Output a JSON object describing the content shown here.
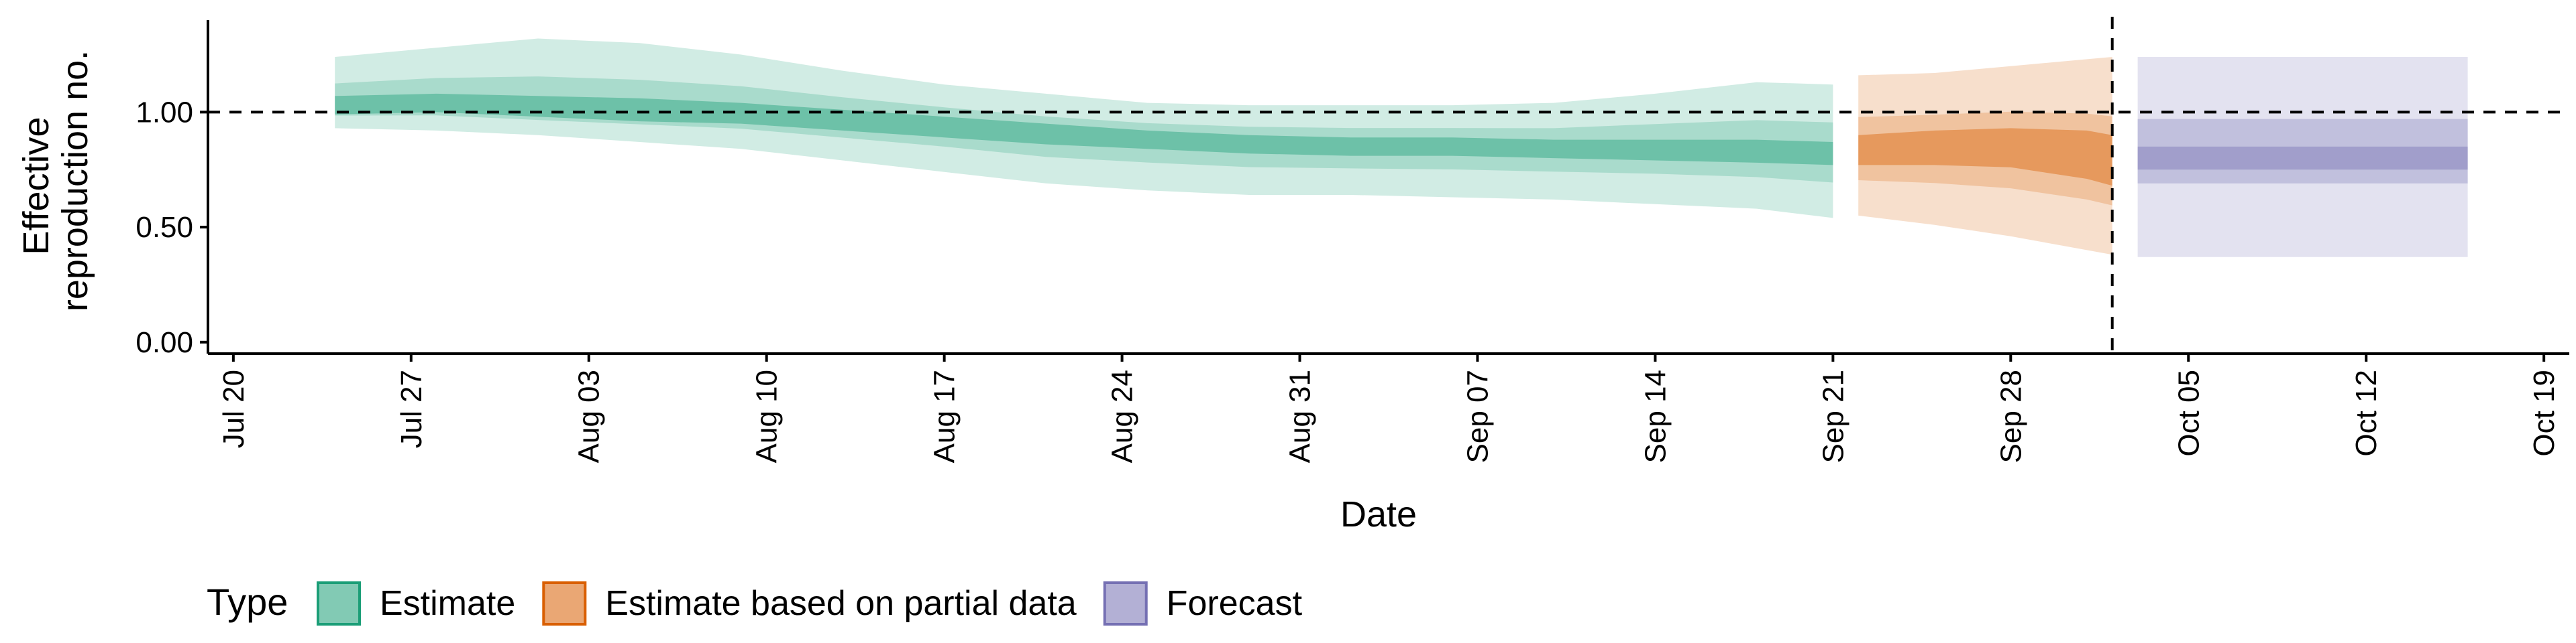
{
  "chart_data": {
    "type": "area",
    "xlabel": "Date",
    "ylabel_lines": [
      "Effective",
      "reproduction no."
    ],
    "x_range": [
      "2020-07-19",
      "2020-10-20"
    ],
    "y_range": [
      -0.05,
      1.4
    ],
    "x_ticks": [
      {
        "date": "2020-07-20",
        "label": "Jul 20"
      },
      {
        "date": "2020-07-27",
        "label": "Jul 27"
      },
      {
        "date": "2020-08-03",
        "label": "Aug 03"
      },
      {
        "date": "2020-08-10",
        "label": "Aug 10"
      },
      {
        "date": "2020-08-17",
        "label": "Aug 17"
      },
      {
        "date": "2020-08-24",
        "label": "Aug 24"
      },
      {
        "date": "2020-08-31",
        "label": "Aug 31"
      },
      {
        "date": "2020-09-07",
        "label": "Sep 07"
      },
      {
        "date": "2020-09-14",
        "label": "Sep 14"
      },
      {
        "date": "2020-09-21",
        "label": "Sep 21"
      },
      {
        "date": "2020-09-28",
        "label": "Sep 28"
      },
      {
        "date": "2020-10-05",
        "label": "Oct 05"
      },
      {
        "date": "2020-10-12",
        "label": "Oct 12"
      },
      {
        "date": "2020-10-19",
        "label": "Oct 19"
      }
    ],
    "y_ticks": [
      {
        "value": 0,
        "label": "0.00"
      },
      {
        "value": 0.5,
        "label": "0.50"
      },
      {
        "value": 1,
        "label": "1.00"
      }
    ],
    "reference_line_y": 1.0,
    "vertical_line_date": "2020-10-02",
    "legend": {
      "title": "Type",
      "position": "bottom"
    },
    "series": [
      {
        "name": "Estimate",
        "color": "#1B9E77",
        "points": [
          {
            "x": "2020-07-24",
            "median": 1.03,
            "q25": 0.99,
            "q75": 1.07,
            "lo": 0.93,
            "hi": 1.24
          },
          {
            "x": "2020-07-28",
            "median": 1.04,
            "q25": 1.0,
            "q75": 1.08,
            "lo": 0.92,
            "hi": 1.28
          },
          {
            "x": "2020-08-01",
            "median": 1.02,
            "q25": 0.98,
            "q75": 1.07,
            "lo": 0.9,
            "hi": 1.32
          },
          {
            "x": "2020-08-05",
            "median": 1.01,
            "q25": 0.96,
            "q75": 1.06,
            "lo": 0.87,
            "hi": 1.3
          },
          {
            "x": "2020-08-09",
            "median": 1.0,
            "q25": 0.95,
            "q75": 1.04,
            "lo": 0.84,
            "hi": 1.25
          },
          {
            "x": "2020-08-13",
            "median": 0.97,
            "q25": 0.92,
            "q75": 1.01,
            "lo": 0.79,
            "hi": 1.18
          },
          {
            "x": "2020-08-17",
            "median": 0.94,
            "q25": 0.89,
            "q75": 0.98,
            "lo": 0.74,
            "hi": 1.12
          },
          {
            "x": "2020-08-21",
            "median": 0.9,
            "q25": 0.86,
            "q75": 0.95,
            "lo": 0.69,
            "hi": 1.08
          },
          {
            "x": "2020-08-25",
            "median": 0.88,
            "q25": 0.84,
            "q75": 0.92,
            "lo": 0.66,
            "hi": 1.04
          },
          {
            "x": "2020-08-29",
            "median": 0.86,
            "q25": 0.82,
            "q75": 0.9,
            "lo": 0.64,
            "hi": 1.03
          },
          {
            "x": "2020-09-02",
            "median": 0.85,
            "q25": 0.81,
            "q75": 0.89,
            "lo": 0.64,
            "hi": 1.03
          },
          {
            "x": "2020-09-06",
            "median": 0.85,
            "q25": 0.81,
            "q75": 0.89,
            "lo": 0.63,
            "hi": 1.03
          },
          {
            "x": "2020-09-10",
            "median": 0.84,
            "q25": 0.8,
            "q75": 0.88,
            "lo": 0.62,
            "hi": 1.04
          },
          {
            "x": "2020-09-14",
            "median": 0.84,
            "q25": 0.79,
            "q75": 0.88,
            "lo": 0.6,
            "hi": 1.08
          },
          {
            "x": "2020-09-18",
            "median": 0.83,
            "q25": 0.78,
            "q75": 0.88,
            "lo": 0.58,
            "hi": 1.13
          },
          {
            "x": "2020-09-21",
            "median": 0.82,
            "q25": 0.77,
            "q75": 0.87,
            "lo": 0.54,
            "hi": 1.12
          }
        ]
      },
      {
        "name": "Estimate based on partial data",
        "color": "#D95F02",
        "points": [
          {
            "x": "2020-09-22",
            "median": 0.83,
            "q25": 0.77,
            "q75": 0.9,
            "lo": 0.55,
            "hi": 1.16
          },
          {
            "x": "2020-09-25",
            "median": 0.84,
            "q25": 0.77,
            "q75": 0.92,
            "lo": 0.51,
            "hi": 1.17
          },
          {
            "x": "2020-09-28",
            "median": 0.84,
            "q25": 0.76,
            "q75": 0.93,
            "lo": 0.46,
            "hi": 1.2
          },
          {
            "x": "2020-10-01",
            "median": 0.8,
            "q25": 0.71,
            "q75": 0.92,
            "lo": 0.4,
            "hi": 1.23
          },
          {
            "x": "2020-10-02",
            "median": 0.77,
            "q25": 0.68,
            "q75": 0.9,
            "lo": 0.38,
            "hi": 1.24
          }
        ]
      },
      {
        "name": "Forecast",
        "color": "#7570B3",
        "points": [
          {
            "x": "2020-10-03",
            "median": 0.8,
            "q25": 0.75,
            "q75": 0.85,
            "lo": 0.37,
            "hi": 1.24
          },
          {
            "x": "2020-10-16",
            "median": 0.8,
            "q25": 0.75,
            "q75": 0.85,
            "lo": 0.37,
            "hi": 1.24
          }
        ],
        "mid_band": {
          "low": 0.69,
          "high": 0.97
        }
      }
    ]
  }
}
